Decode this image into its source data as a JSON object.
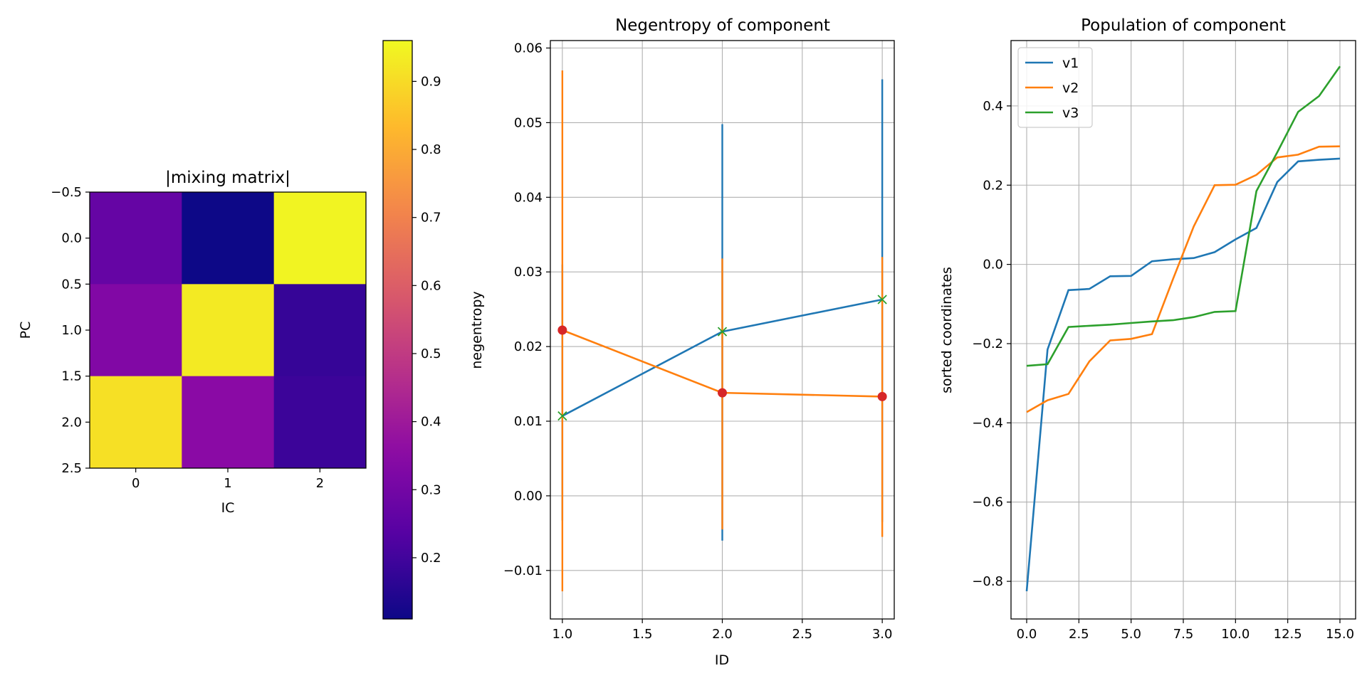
{
  "colors": {
    "blue": "#1f77b4",
    "orange": "#ff7f0e",
    "green": "#2ca02c",
    "red": "#d62728",
    "grid": "#b0b0b0"
  },
  "chart_data": [
    {
      "type": "heatmap",
      "title": "|mixing matrix|",
      "xlabel": "IC",
      "ylabel": "PC",
      "colormap": "plasma",
      "values": [
        [
          0.27,
          0.11,
          0.95
        ],
        [
          0.33,
          0.93,
          0.18
        ],
        [
          0.91,
          0.35,
          0.19
        ]
      ],
      "xticks": [
        "0",
        "1",
        "2"
      ],
      "yticks": [
        "−0.5",
        "0.0",
        "0.5",
        "1.0",
        "1.5",
        "2.0",
        "2.5"
      ],
      "colorbar": {
        "range": [
          0.11,
          0.96
        ],
        "ticks": [
          0.2,
          0.3,
          0.4,
          0.5,
          0.6,
          0.7,
          0.8,
          0.9
        ],
        "tick_labels": [
          "0.2",
          "0.3",
          "0.4",
          "0.5",
          "0.6",
          "0.7",
          "0.8",
          "0.9"
        ]
      }
    },
    {
      "type": "line",
      "title": "Negentropy of component",
      "xlabel": "ID",
      "ylabel": "negentropy",
      "xlim": [
        0.925,
        3.075
      ],
      "ylim": [
        -0.0165,
        0.061
      ],
      "grid": true,
      "xticks": [
        1.0,
        1.5,
        2.0,
        2.5,
        3.0
      ],
      "xtick_labels": [
        "1.0",
        "1.5",
        "2.0",
        "2.5",
        "3.0"
      ],
      "yticks": [
        -0.01,
        0.0,
        0.01,
        0.02,
        0.03,
        0.04,
        0.05,
        0.06
      ],
      "ytick_labels": [
        "−0.01",
        "0.00",
        "0.01",
        "0.02",
        "0.03",
        "0.04",
        "0.05",
        "0.06"
      ],
      "series": [
        {
          "color": "blue",
          "marker": "x",
          "marker_color": "green",
          "x": [
            1,
            2,
            3
          ],
          "y": [
            0.0107,
            0.022,
            0.0263
          ],
          "err_low": [
            -0.0033,
            -0.006,
            -0.0035
          ],
          "err_high": [
            0.031,
            0.0498,
            0.0558
          ]
        },
        {
          "color": "orange",
          "marker": "o",
          "marker_color": "red",
          "x": [
            1,
            2,
            3
          ],
          "y": [
            0.0222,
            0.0138,
            0.0133
          ],
          "err_low": [
            -0.0128,
            -0.0045,
            -0.0055
          ],
          "err_high": [
            0.057,
            0.0318,
            0.032
          ]
        }
      ]
    },
    {
      "type": "line",
      "title": "Population of component",
      "ylabel": "sorted coordinates",
      "xlim": [
        -0.75,
        15.75
      ],
      "ylim": [
        -0.895,
        0.565
      ],
      "grid": true,
      "legend": "top-left",
      "xticks": [
        0,
        2.5,
        5,
        7.5,
        10,
        12.5,
        15
      ],
      "xtick_labels": [
        "0.0",
        "2.5",
        "5.0",
        "7.5",
        "10.0",
        "12.5",
        "15.0"
      ],
      "yticks": [
        -0.8,
        -0.6,
        -0.4,
        -0.2,
        0.0,
        0.2,
        0.4
      ],
      "ytick_labels": [
        "−0.8",
        "−0.6",
        "−0.4",
        "−0.2",
        "0.0",
        "0.2",
        "0.4"
      ],
      "x": [
        0,
        1,
        2,
        3,
        4,
        5,
        6,
        7,
        8,
        9,
        10,
        11,
        12,
        13,
        14,
        15
      ],
      "series": [
        {
          "name": "v1",
          "color": "blue",
          "values": [
            -0.825,
            -0.215,
            -0.065,
            -0.062,
            -0.03,
            -0.029,
            0.008,
            0.013,
            0.016,
            0.031,
            0.063,
            0.092,
            0.208,
            0.26,
            0.264,
            0.267
          ]
        },
        {
          "name": "v2",
          "color": "orange",
          "values": [
            -0.373,
            -0.343,
            -0.327,
            -0.245,
            -0.192,
            -0.188,
            -0.176,
            -0.038,
            0.096,
            0.2,
            0.201,
            0.226,
            0.27,
            0.277,
            0.297,
            0.298
          ]
        },
        {
          "name": "v3",
          "color": "green",
          "values": [
            -0.256,
            -0.252,
            -0.158,
            -0.155,
            -0.152,
            -0.148,
            -0.144,
            -0.141,
            -0.133,
            -0.12,
            -0.118,
            0.185,
            0.283,
            0.385,
            0.425,
            0.5
          ]
        }
      ]
    }
  ]
}
